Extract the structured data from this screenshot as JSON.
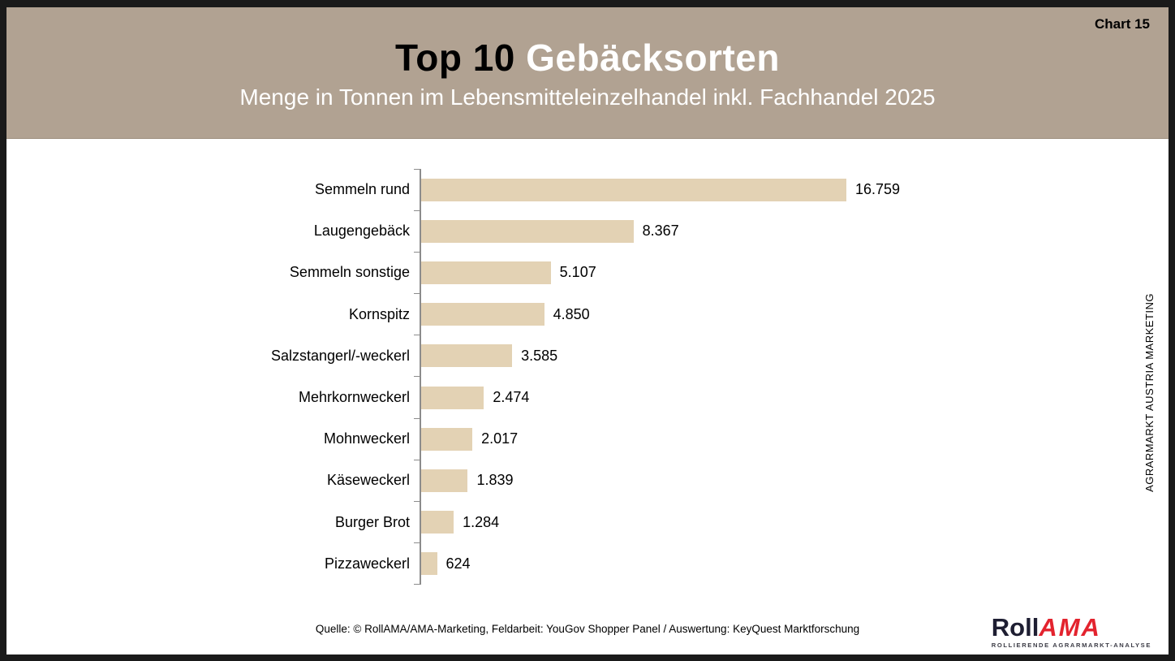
{
  "page": {
    "chart_number": "Chart 15"
  },
  "header": {
    "title_black": "Top 10",
    "title_white": "Gebäcksorten",
    "subtitle": "Menge in Tonnen im Lebensmitteleinzelhandel inkl. Fachhandel 2025"
  },
  "chart_data": {
    "type": "bar",
    "orientation": "horizontal",
    "title": "Top 10 Gebäcksorten",
    "subtitle": "Menge in Tonnen im Lebensmitteleinzelhandel inkl. Fachhandel 2025",
    "categories": [
      "Semmeln rund",
      "Laugengebäck",
      "Semmeln sonstige",
      "Kornspitz",
      "Salzstangerl/-weckerl",
      "Mehrkornweckerl",
      "Mohnweckerl",
      "Käseweckerl",
      "Burger Brot",
      "Pizzaweckerl"
    ],
    "values": [
      16759,
      8367,
      5107,
      4850,
      3585,
      2474,
      2017,
      1839,
      1284,
      624
    ],
    "value_labels": [
      "16.759",
      "8.367",
      "5.107",
      "4.850",
      "3.585",
      "2.474",
      "2.017",
      "1.839",
      "1.284",
      "624"
    ],
    "xlabel": "",
    "ylabel": "",
    "xlim": [
      0,
      16759
    ],
    "grid": false,
    "legend": false,
    "data_labels_position": "right-of-bar"
  },
  "sidebar_text": "AGRARMARKT AUSTRIA MARKETING",
  "footer": {
    "source": "Quelle: © RollAMA/AMA-Marketing, Feldarbeit: YouGov Shopper Panel / Auswertung: KeyQuest Marktforschung",
    "logo": {
      "part1": "Roll",
      "part2": "AMA",
      "tagline": "ROLLIERENDE AGRARMARKT-ANALYSE"
    }
  },
  "colors": {
    "header_bg": "#b1a292",
    "bar": "#e3d2b4",
    "axis": "#8c8c8c",
    "frame": "#1a1a1a",
    "title_black": "#000000",
    "title_white": "#ffffff",
    "logo_dark": "#1e1e32",
    "logo_red": "#e3232e"
  }
}
